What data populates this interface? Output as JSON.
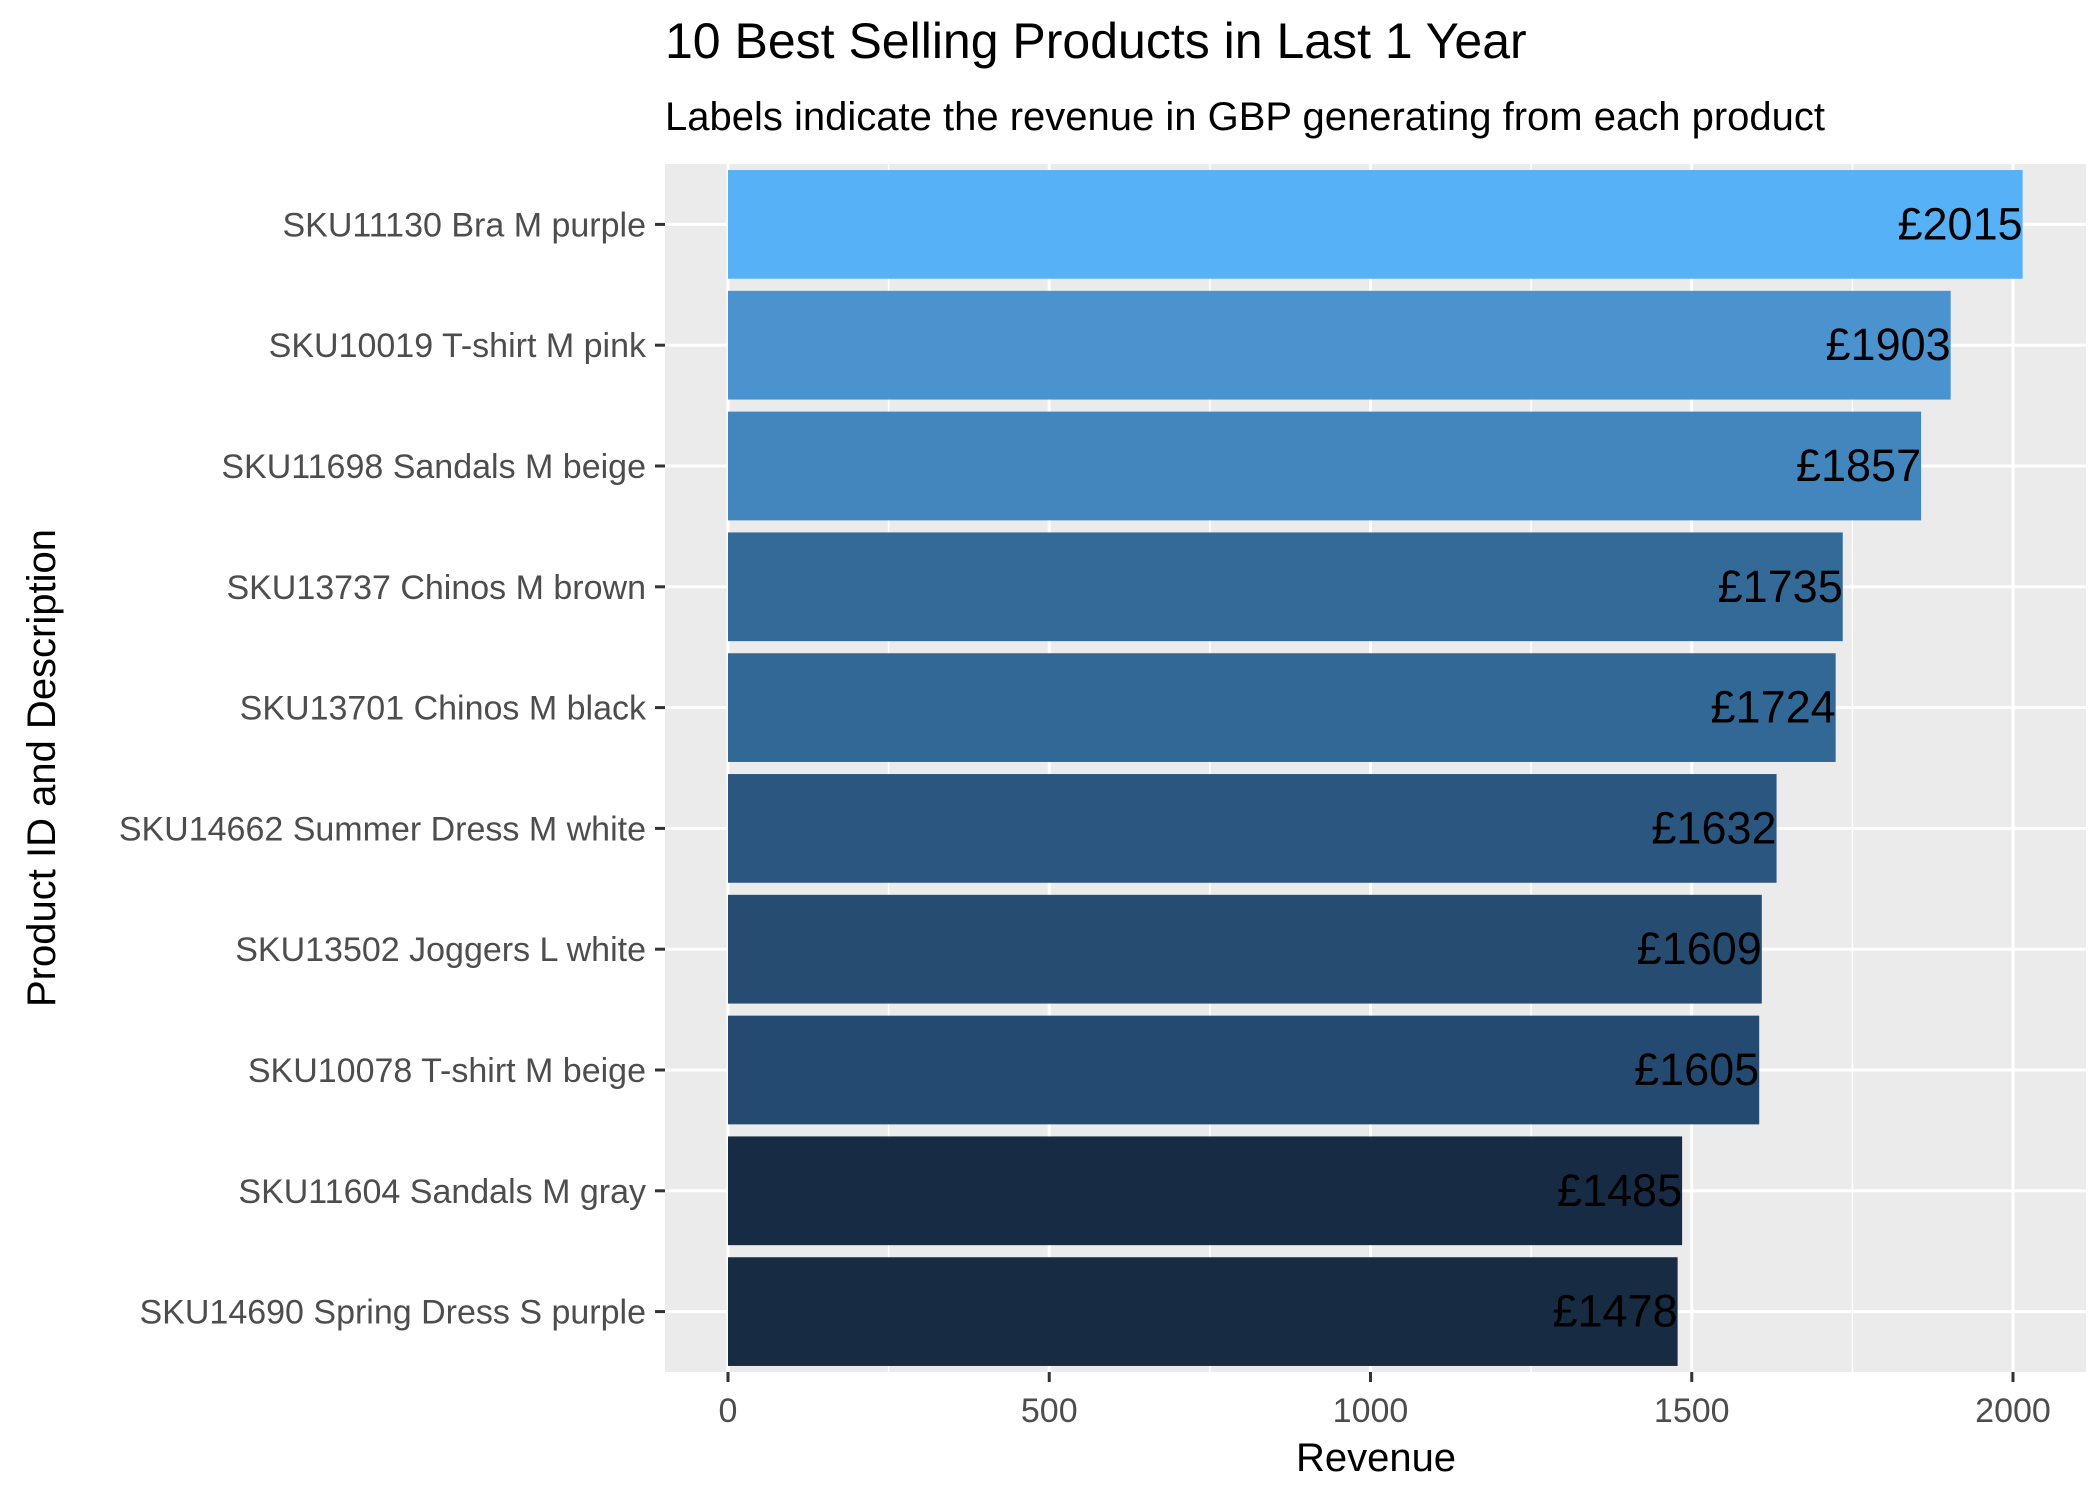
{
  "chart_data": {
    "type": "bar",
    "orientation": "horizontal",
    "title": "10 Best Selling Products in Last 1 Year",
    "subtitle": "Labels indicate the revenue in GBP generating from each product",
    "xlabel": "Revenue",
    "ylabel": "Product ID and Description",
    "xlim": [
      0,
      2100
    ],
    "xticks": [
      0,
      500,
      1000,
      1500,
      2000
    ],
    "grid": true,
    "legend": "none",
    "panel_background": "#ebebeb",
    "grid_color": "#ffffff",
    "categories": [
      "SKU11130 Bra M purple",
      "SKU10019 T-shirt M pink",
      "SKU11698 Sandals M beige",
      "SKU13737 Chinos M brown",
      "SKU13701 Chinos M black",
      "SKU14662 Summer Dress M white",
      "SKU13502 Joggers L white",
      "SKU10078 T-shirt M beige",
      "SKU11604 Sandals M gray",
      "SKU14690 Spring Dress S purple"
    ],
    "values": [
      2015,
      1903,
      1857,
      1735,
      1724,
      1632,
      1609,
      1605,
      1485,
      1478
    ],
    "labels": [
      "£2015",
      "£1903",
      "£1857",
      "£1735",
      "£1724",
      "£1632",
      "£1609",
      "£1605",
      "£1485",
      "£1478"
    ],
    "bar_colors": [
      "#56b1f7",
      "#4a93cf",
      "#4386bd",
      "#336a98",
      "#326895",
      "#2a567f",
      "#264c72",
      "#254a71",
      "#172b44",
      "#172b43"
    ]
  }
}
